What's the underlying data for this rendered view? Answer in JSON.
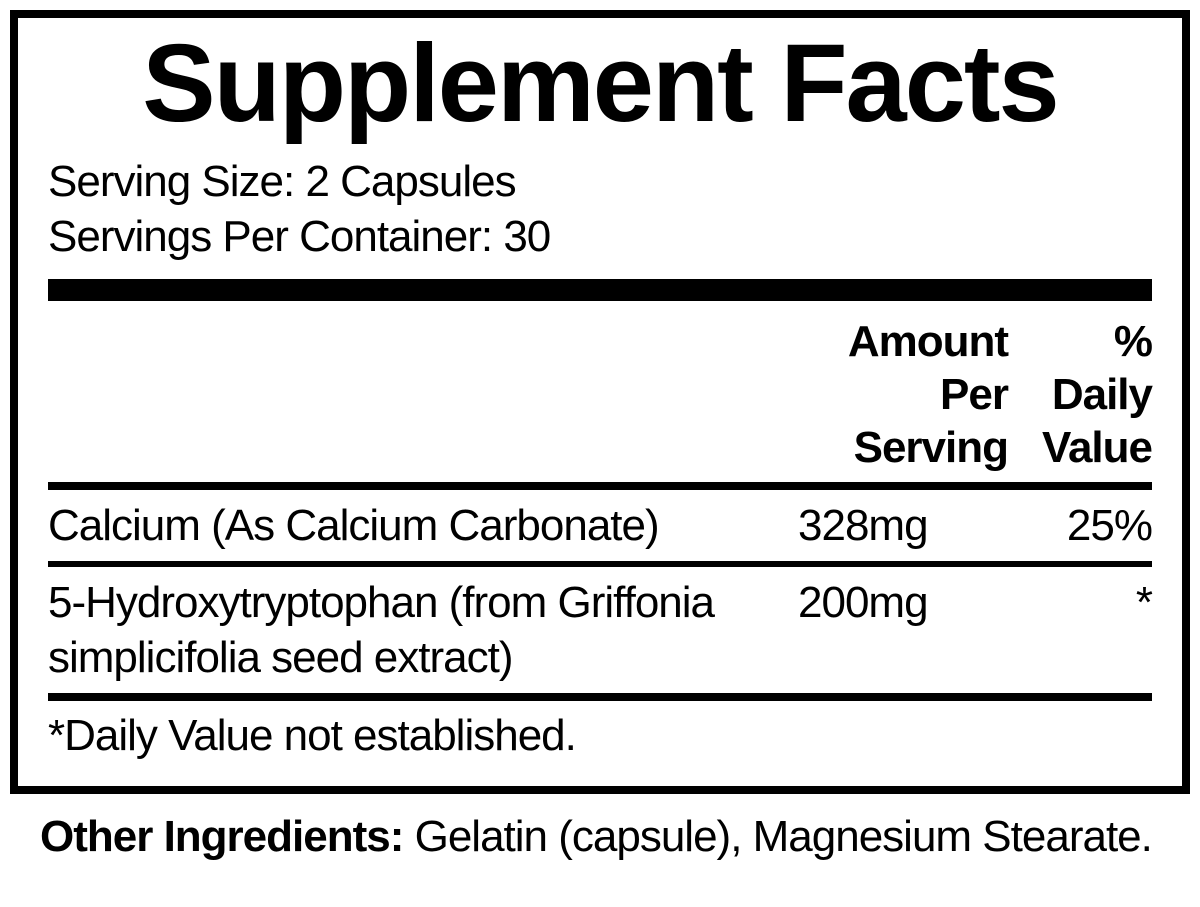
{
  "title": "Supplement Facts",
  "serving_size": "Serving Size: 2 Capsules",
  "servings_per_container": "Servings Per Container: 30",
  "header": {
    "amount": "Amount Per Serving",
    "dv": "% Daily Value"
  },
  "ingredients": [
    {
      "name": "Calcium (As  Calcium Carbonate)",
      "amount": "328mg",
      "dv": "25%"
    },
    {
      "name": "5-Hydroxytryptophan (from Griffonia simplicifolia seed extract)",
      "amount": "200mg",
      "dv": "*"
    }
  ],
  "footnote": "*Daily Value not established.",
  "other_ingredients_label": "Other Ingredients: ",
  "other_ingredients_value": "Gelatin (capsule), Magnesium Stearate.",
  "style": {
    "font_family": "Arial, Helvetica, sans-serif",
    "title_fontsize": 110,
    "body_fontsize": 44,
    "text_color": "#000000",
    "background_color": "#ffffff",
    "border_width": 8,
    "thick_bar_height": 22,
    "divider_thick_height": 8,
    "divider_thin_height": 6
  }
}
